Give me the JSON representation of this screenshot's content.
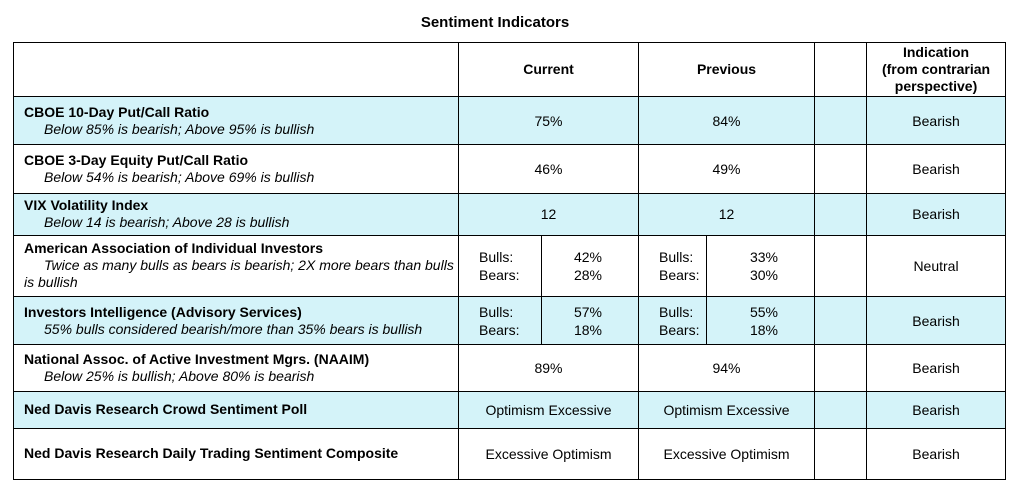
{
  "title": "Sentiment Indicators",
  "headers": {
    "current": "Current",
    "previous": "Previous",
    "indication": [
      "Indication",
      "(from contrarian",
      "perspective)"
    ]
  },
  "rows": [
    {
      "name": "CBOE 10-Day Put/Call Ratio",
      "desc": "Below 85% is bearish; Above 95% is bullish",
      "current": "75%",
      "previous": "84%",
      "indication": "Bearish"
    },
    {
      "name": "CBOE 3-Day Equity Put/Call Ratio",
      "desc": "Below 54% is bearish; Above 69% is bullish",
      "current": "46%",
      "previous": "49%",
      "indication": "Bearish"
    },
    {
      "name": "VIX Volatility Index",
      "desc": "Below 14 is bearish; Above 28 is bullish",
      "current": "12",
      "previous": "12",
      "indication": "Bearish"
    },
    {
      "name": "American Association of Individual Investors",
      "desc": "Twice as many bulls as bears is bearish; 2X more bears than bulls is bullish",
      "current": {
        "bulls_label": "Bulls:",
        "bears_label": "Bears:",
        "bulls": "42%",
        "bears": "28%"
      },
      "previous": {
        "bulls_label": "Bulls:",
        "bears_label": "Bears:",
        "bulls": "33%",
        "bears": "30%"
      },
      "indication": "Neutral"
    },
    {
      "name": "Investors Intelligence (Advisory Services)",
      "desc": "55% bulls considered bearish/more than 35% bears is bullish",
      "current": {
        "bulls_label": "Bulls:",
        "bears_label": "Bears:",
        "bulls": "57%",
        "bears": "18%"
      },
      "previous": {
        "bulls_label": "Bulls:",
        "bears_label": "Bears:",
        "bulls": "55%",
        "bears": "18%"
      },
      "indication": "Bearish"
    },
    {
      "name": "National Assoc. of Active Investment Mgrs. (NAAIM)",
      "desc": "Below 25% is bullish; Above 80% is bearish",
      "current": "89%",
      "previous": "94%",
      "indication": "Bearish"
    },
    {
      "name": "Ned Davis Research Crowd Sentiment Poll",
      "current": "Optimism Excessive",
      "previous": "Optimism Excessive",
      "indication": "Bearish"
    },
    {
      "name": "Ned Davis Research Daily Trading Sentiment Composite",
      "current": "Excessive Optimism",
      "previous": "Excessive Optimism",
      "indication": "Bearish"
    }
  ],
  "colors": {
    "highlight_row": "#d4f3f9",
    "border": "#000000"
  }
}
